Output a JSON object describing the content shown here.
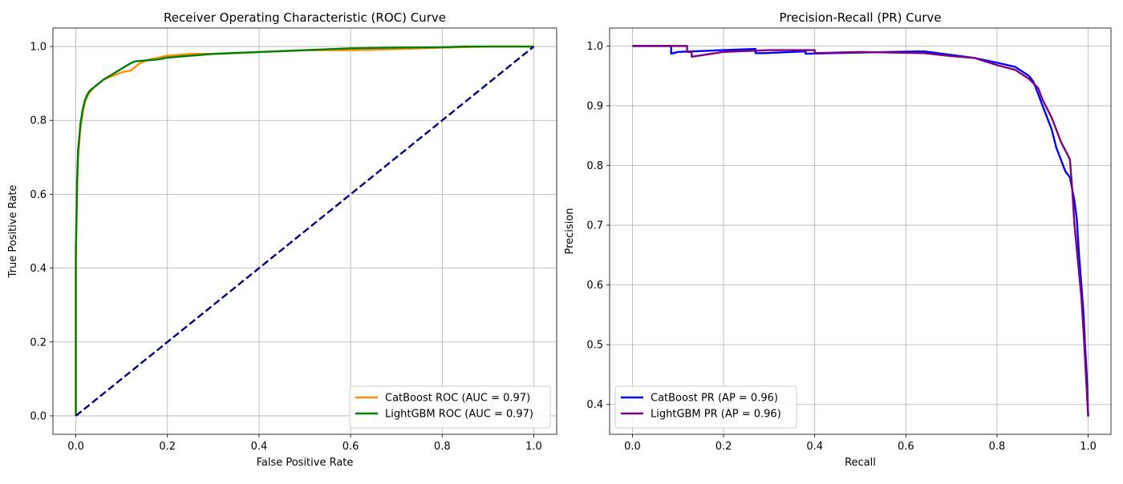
{
  "chart_data": [
    {
      "type": "line",
      "title": "Receiver Operating Characteristic (ROC) Curve",
      "xlabel": "False Positive Rate",
      "ylabel": "True Positive Rate",
      "xlim": [
        -0.05,
        1.05
      ],
      "ylim": [
        -0.05,
        1.05
      ],
      "xticks": [
        0.0,
        0.2,
        0.4,
        0.6,
        0.8,
        1.0
      ],
      "yticks": [
        0.0,
        0.2,
        0.4,
        0.6,
        0.8,
        1.0
      ],
      "tick_labels_x": [
        "0.0",
        "0.2",
        "0.4",
        "0.6",
        "0.8",
        "1.0"
      ],
      "tick_labels_y": [
        "0.0",
        "0.2",
        "0.4",
        "0.6",
        "0.8",
        "1.0"
      ],
      "grid": true,
      "legend_position": "lower-right",
      "series": [
        {
          "name": "CatBoost ROC (AUC = 0.97)",
          "color": "#ff8c00",
          "dash": "solid",
          "x": [
            0,
            0,
            0.003,
            0.005,
            0.008,
            0.01,
            0.015,
            0.02,
            0.025,
            0.03,
            0.04,
            0.05,
            0.06,
            0.08,
            0.1,
            0.12,
            0.14,
            0.16,
            0.18,
            0.2,
            0.25,
            0.3,
            0.4,
            0.5,
            0.6,
            0.7,
            0.8,
            0.9,
            1.0
          ],
          "y": [
            0,
            0.42,
            0.63,
            0.7,
            0.75,
            0.78,
            0.82,
            0.85,
            0.865,
            0.875,
            0.89,
            0.9,
            0.91,
            0.92,
            0.93,
            0.935,
            0.955,
            0.965,
            0.97,
            0.975,
            0.98,
            0.98,
            0.985,
            0.99,
            0.99,
            0.993,
            0.997,
            1.0,
            1.0
          ]
        },
        {
          "name": "LightGBM ROC (AUC = 0.97)",
          "color": "#008000",
          "dash": "solid",
          "x": [
            0,
            0,
            0.003,
            0.005,
            0.008,
            0.01,
            0.015,
            0.02,
            0.025,
            0.03,
            0.04,
            0.05,
            0.06,
            0.08,
            0.1,
            0.12,
            0.13,
            0.15,
            0.18,
            0.2,
            0.25,
            0.3,
            0.4,
            0.5,
            0.6,
            0.7,
            0.8,
            0.85,
            1.0
          ],
          "y": [
            0,
            0.45,
            0.64,
            0.72,
            0.76,
            0.79,
            0.83,
            0.855,
            0.87,
            0.88,
            0.89,
            0.9,
            0.91,
            0.925,
            0.94,
            0.955,
            0.96,
            0.962,
            0.965,
            0.97,
            0.975,
            0.98,
            0.985,
            0.99,
            0.995,
            0.997,
            0.998,
            1.0,
            1.0
          ]
        },
        {
          "color": "#000080",
          "dash": "dashed",
          "x": [
            0,
            1
          ],
          "y": [
            0,
            1
          ]
        }
      ]
    },
    {
      "type": "line",
      "title": "Precision-Recall (PR) Curve",
      "xlabel": "Recall",
      "ylabel": "Precision",
      "xlim": [
        -0.05,
        1.05
      ],
      "ylim": [
        0.35,
        1.03
      ],
      "xticks": [
        0.0,
        0.2,
        0.4,
        0.6,
        0.8,
        1.0
      ],
      "yticks": [
        0.4,
        0.5,
        0.6,
        0.7,
        0.8,
        0.9,
        1.0
      ],
      "tick_labels_x": [
        "0.0",
        "0.2",
        "0.4",
        "0.6",
        "0.8",
        "1.0"
      ],
      "tick_labels_y": [
        "0.4",
        "0.5",
        "0.6",
        "0.7",
        "0.8",
        "0.9",
        "1.0"
      ],
      "grid": true,
      "legend_position": "lower-left",
      "series": [
        {
          "name": "CatBoost PR (AP = 0.96)",
          "color": "#0000ff",
          "dash": "solid",
          "x": [
            0,
            0.085,
            0.085,
            0.1,
            0.2,
            0.27,
            0.27,
            0.29,
            0.35,
            0.38,
            0.38,
            0.5,
            0.64,
            0.7,
            0.75,
            0.8,
            0.84,
            0.87,
            0.88,
            0.89,
            0.9,
            0.92,
            0.93,
            0.95,
            0.96,
            0.97,
            0.975,
            0.98,
            0.985,
            0.99,
            0.993,
            0.996,
            0.998,
            1.0
          ],
          "y": [
            1.0,
            1.0,
            0.987,
            0.99,
            0.993,
            0.995,
            0.988,
            0.988,
            0.99,
            0.991,
            0.987,
            0.989,
            0.991,
            0.985,
            0.98,
            0.972,
            0.965,
            0.95,
            0.94,
            0.92,
            0.9,
            0.86,
            0.83,
            0.79,
            0.78,
            0.74,
            0.71,
            0.65,
            0.6,
            0.55,
            0.5,
            0.46,
            0.43,
            0.38
          ]
        },
        {
          "name": "LightGBM PR (AP = 0.96)",
          "color": "#800080",
          "dash": "solid",
          "x": [
            0,
            0.12,
            0.12,
            0.13,
            0.13,
            0.2,
            0.3,
            0.4,
            0.4,
            0.5,
            0.64,
            0.7,
            0.75,
            0.8,
            0.84,
            0.87,
            0.89,
            0.9,
            0.92,
            0.94,
            0.96,
            0.965,
            0.97,
            0.975,
            0.98,
            0.985,
            0.99,
            0.995,
            1.0
          ],
          "y": [
            1.0,
            1.0,
            0.99,
            0.99,
            0.982,
            0.99,
            0.993,
            0.993,
            0.988,
            0.99,
            0.988,
            0.983,
            0.98,
            0.968,
            0.96,
            0.945,
            0.93,
            0.91,
            0.88,
            0.84,
            0.81,
            0.76,
            0.7,
            0.66,
            0.62,
            0.58,
            0.52,
            0.45,
            0.38
          ]
        }
      ]
    }
  ]
}
